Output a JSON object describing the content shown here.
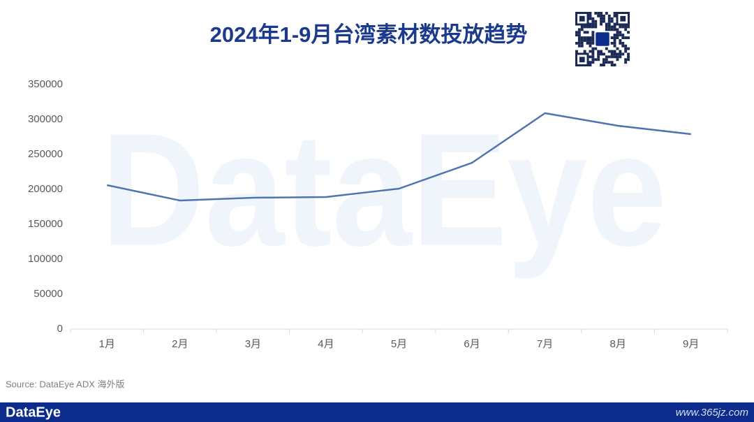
{
  "chart_data": {
    "type": "line",
    "title": "2024年1-9月台湾素材数投放趋势",
    "categories": [
      "1月",
      "2月",
      "3月",
      "4月",
      "5月",
      "6月",
      "7月",
      "8月",
      "9月"
    ],
    "values": [
      206000,
      184000,
      188000,
      189000,
      201000,
      238000,
      309000,
      291000,
      279000
    ],
    "color": "#4f74b1",
    "ylim": [
      0,
      350000
    ],
    "yticks": [
      0,
      50000,
      100000,
      150000,
      200000,
      250000,
      300000,
      350000
    ],
    "grid": false,
    "watermark": "DataEye",
    "source": "Source: DataEye ADX 海外版"
  },
  "footer": {
    "brand": "DataEye",
    "site": "www.365jz.com"
  }
}
